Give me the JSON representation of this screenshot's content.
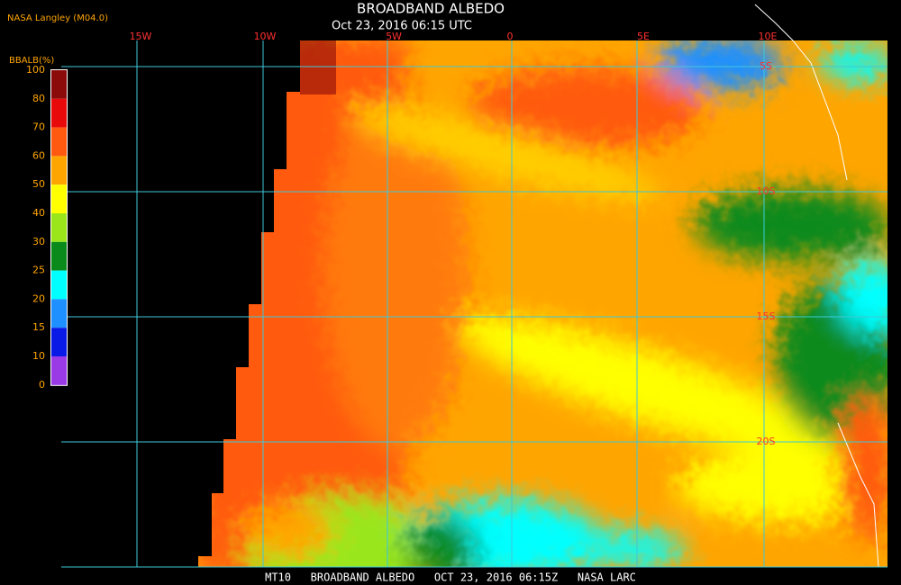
{
  "header": {
    "title": "BROADBAND ALBEDO",
    "timestamp": "Oct 23, 2016 06:15 UTC",
    "source": "NASA Langley (M04.0)"
  },
  "legend": {
    "title": "BBALB(%)",
    "labels": [
      100,
      80,
      70,
      60,
      50,
      40,
      30,
      25,
      20,
      15,
      10,
      0
    ],
    "colors": [
      "#8b0a0a",
      "#e80a0a",
      "#ff5a10",
      "#ffa500",
      "#ffff00",
      "#9ae61a",
      "#0a8a1a",
      "#00ffff",
      "#1e90ff",
      "#0a1ae6",
      "#9a3ae6"
    ]
  },
  "longitude_labels": [
    "15W",
    "10W",
    "5W",
    "0",
    "5E",
    "10E"
  ],
  "latitude_labels": [
    "5S",
    "10S",
    "15S",
    "20S"
  ],
  "footer": "MT10   BROADBAND ALBEDO   OCT 23, 2016 06:15Z   NASA LARC"
}
